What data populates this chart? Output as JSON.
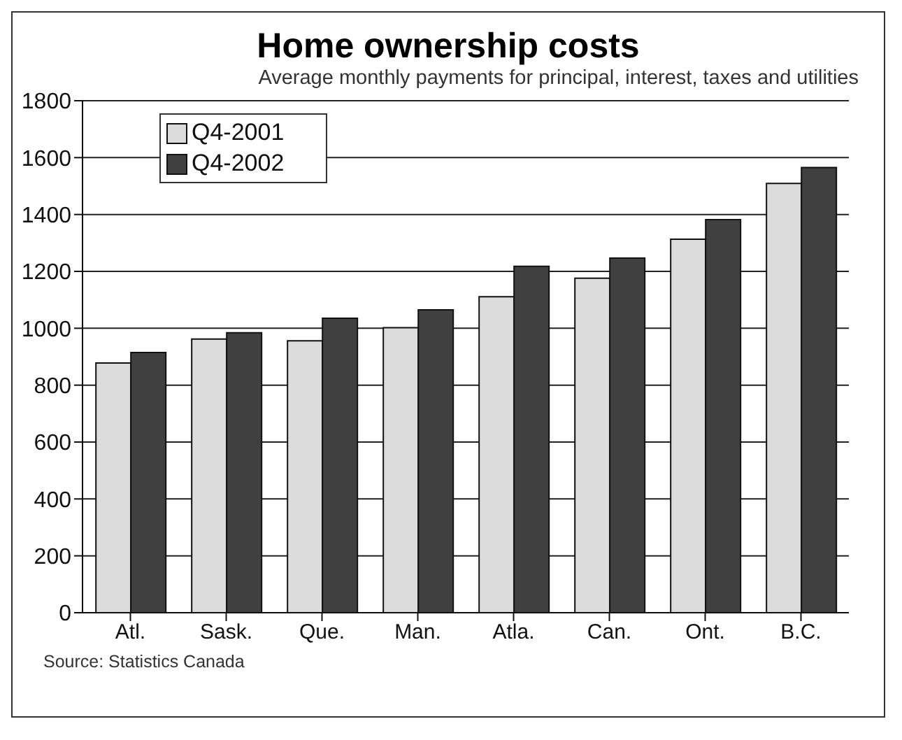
{
  "chart_data": {
    "type": "bar",
    "title": "Home ownership costs",
    "subtitle": "Average monthly payments for principal, interest, taxes and utilities",
    "categories": [
      "Atl.",
      "Sask.",
      "Que.",
      "Man.",
      "Atla.",
      "Can.",
      "Ont.",
      "B.C."
    ],
    "series": [
      {
        "name": "Q4-2001",
        "color": "#dcdcdc",
        "values": [
          878,
          962,
          956,
          1002,
          1111,
          1176,
          1313,
          1509
        ]
      },
      {
        "name": "Q4-2002",
        "color": "#404040",
        "values": [
          915,
          984,
          1035,
          1065,
          1218,
          1247,
          1382,
          1565
        ]
      }
    ],
    "ylim": [
      0,
      1800
    ],
    "yticks": [
      0,
      200,
      400,
      600,
      800,
      1000,
      1200,
      1400,
      1600,
      1800
    ],
    "grid": "y",
    "legend": "top left",
    "annotations": [
      "Source: Statistics Canada"
    ]
  }
}
